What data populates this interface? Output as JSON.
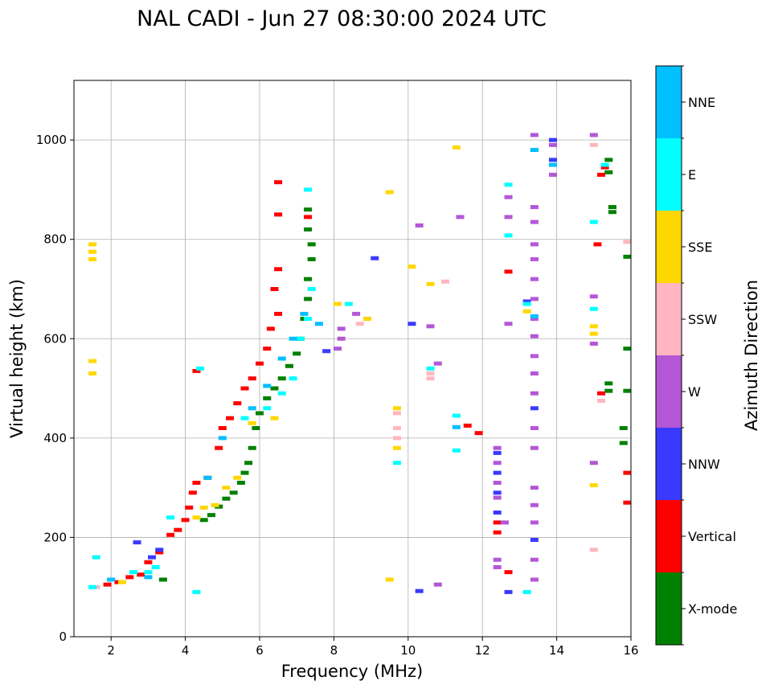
{
  "chart_data": {
    "type": "scatter",
    "title": "NAL CADI - Jun 27 08:30:00 2024 UTC",
    "xlabel": "Frequency (MHz)",
    "ylabel": "Virtual height (km)",
    "xlim": [
      1,
      16
    ],
    "ylim": [
      0,
      1120
    ],
    "xticks": [
      2,
      4,
      6,
      8,
      10,
      12,
      14,
      16
    ],
    "yticks": [
      0,
      200,
      400,
      600,
      800,
      1000
    ],
    "grid": true,
    "colorbar": {
      "label": "Azimuth Direction",
      "categories": [
        {
          "name": "X-mode",
          "color": "#008000"
        },
        {
          "name": "Vertical",
          "color": "#ff0000"
        },
        {
          "name": "NNW",
          "color": "#3a3aff"
        },
        {
          "name": "W",
          "color": "#b457d6"
        },
        {
          "name": "SSW",
          "color": "#ffb6c1"
        },
        {
          "name": "SSE",
          "color": "#ffd700"
        },
        {
          "name": "E",
          "color": "#00ffff"
        },
        {
          "name": "NNE",
          "color": "#00bfff"
        }
      ]
    },
    "series": [
      {
        "name": "X-mode",
        "points": [
          [
            3.4,
            115
          ],
          [
            4.5,
            235
          ],
          [
            4.7,
            245
          ],
          [
            4.9,
            262
          ],
          [
            5.1,
            278
          ],
          [
            5.3,
            290
          ],
          [
            5.5,
            310
          ],
          [
            5.6,
            330
          ],
          [
            5.7,
            350
          ],
          [
            5.8,
            380
          ],
          [
            5.9,
            420
          ],
          [
            6.0,
            450
          ],
          [
            6.2,
            480
          ],
          [
            6.4,
            500
          ],
          [
            6.6,
            520
          ],
          [
            6.8,
            545
          ],
          [
            7.0,
            570
          ],
          [
            7.1,
            600
          ],
          [
            7.2,
            640
          ],
          [
            7.3,
            680
          ],
          [
            7.3,
            720
          ],
          [
            7.4,
            760
          ],
          [
            7.4,
            790
          ],
          [
            7.3,
            820
          ],
          [
            7.3,
            860
          ],
          [
            15.4,
            960
          ],
          [
            15.4,
            935
          ],
          [
            15.5,
            865
          ],
          [
            15.5,
            855
          ],
          [
            15.4,
            510
          ],
          [
            15.4,
            495
          ],
          [
            15.9,
            765
          ],
          [
            15.9,
            580
          ],
          [
            15.9,
            495
          ],
          [
            15.8,
            420
          ],
          [
            15.8,
            390
          ]
        ]
      },
      {
        "name": "Vertical",
        "points": [
          [
            1.9,
            105
          ],
          [
            2.2,
            110
          ],
          [
            2.5,
            120
          ],
          [
            2.8,
            125
          ],
          [
            3.0,
            150
          ],
          [
            3.3,
            170
          ],
          [
            3.6,
            205
          ],
          [
            3.8,
            215
          ],
          [
            4.0,
            235
          ],
          [
            4.1,
            260
          ],
          [
            4.2,
            290
          ],
          [
            4.3,
            310
          ],
          [
            4.6,
            320
          ],
          [
            4.9,
            380
          ],
          [
            5.0,
            420
          ],
          [
            5.2,
            440
          ],
          [
            5.4,
            470
          ],
          [
            5.6,
            500
          ],
          [
            5.8,
            520
          ],
          [
            6.0,
            550
          ],
          [
            6.2,
            580
          ],
          [
            6.3,
            620
          ],
          [
            6.5,
            650
          ],
          [
            6.4,
            700
          ],
          [
            6.5,
            740
          ],
          [
            6.5,
            850
          ],
          [
            6.5,
            915
          ],
          [
            4.3,
            535
          ],
          [
            7.3,
            845
          ],
          [
            11.6,
            425
          ],
          [
            11.9,
            410
          ],
          [
            12.4,
            230
          ],
          [
            12.4,
            210
          ],
          [
            12.7,
            735
          ],
          [
            12.7,
            130
          ],
          [
            15.2,
            490
          ],
          [
            15.2,
            930
          ],
          [
            15.3,
            945
          ],
          [
            15.1,
            790
          ],
          [
            15.9,
            330
          ],
          [
            15.9,
            270
          ]
        ]
      },
      {
        "name": "NNW",
        "points": [
          [
            2.7,
            190
          ],
          [
            3.3,
            175
          ],
          [
            3.1,
            160
          ],
          [
            12.4,
            370
          ],
          [
            12.4,
            330
          ],
          [
            12.4,
            290
          ],
          [
            12.4,
            250
          ],
          [
            12.7,
            90
          ],
          [
            13.2,
            675
          ],
          [
            13.4,
            195
          ],
          [
            13.4,
            460
          ],
          [
            13.4,
            980
          ],
          [
            13.9,
            960
          ],
          [
            13.9,
            1000
          ],
          [
            10.1,
            630
          ],
          [
            10.3,
            92
          ],
          [
            9.1,
            762
          ],
          [
            7.8,
            575
          ]
        ]
      },
      {
        "name": "W",
        "points": [
          [
            8.1,
            580
          ],
          [
            8.2,
            600
          ],
          [
            8.2,
            620
          ],
          [
            8.6,
            650
          ],
          [
            8.9,
            640
          ],
          [
            10.6,
            625
          ],
          [
            10.8,
            550
          ],
          [
            10.8,
            105
          ],
          [
            12.4,
            380
          ],
          [
            12.4,
            350
          ],
          [
            12.4,
            310
          ],
          [
            12.4,
            280
          ],
          [
            12.4,
            155
          ],
          [
            12.4,
            140
          ],
          [
            12.7,
            885
          ],
          [
            12.7,
            845
          ],
          [
            12.7,
            630
          ],
          [
            12.6,
            230
          ],
          [
            13.4,
            1010
          ],
          [
            13.4,
            865
          ],
          [
            13.4,
            835
          ],
          [
            13.4,
            790
          ],
          [
            13.4,
            760
          ],
          [
            13.4,
            720
          ],
          [
            13.4,
            680
          ],
          [
            13.4,
            640
          ],
          [
            13.4,
            605
          ],
          [
            13.4,
            565
          ],
          [
            13.4,
            530
          ],
          [
            13.4,
            490
          ],
          [
            13.4,
            420
          ],
          [
            13.4,
            380
          ],
          [
            13.4,
            300
          ],
          [
            13.4,
            265
          ],
          [
            13.4,
            230
          ],
          [
            13.4,
            155
          ],
          [
            13.4,
            115
          ],
          [
            13.9,
            990
          ],
          [
            13.9,
            930
          ],
          [
            15.0,
            1010
          ],
          [
            15.0,
            685
          ],
          [
            15.0,
            590
          ],
          [
            15.0,
            350
          ],
          [
            10.3,
            828
          ],
          [
            11.4,
            845
          ]
        ]
      },
      {
        "name": "SSW",
        "points": [
          [
            1.6,
            100
          ],
          [
            9.7,
            450
          ],
          [
            9.7,
            420
          ],
          [
            9.7,
            400
          ],
          [
            10.6,
            530
          ],
          [
            10.6,
            520
          ],
          [
            11.0,
            715
          ],
          [
            15.0,
            990
          ],
          [
            15.0,
            175
          ],
          [
            15.2,
            475
          ],
          [
            15.9,
            795
          ],
          [
            8.7,
            630
          ]
        ]
      },
      {
        "name": "SSE",
        "points": [
          [
            1.5,
            790
          ],
          [
            1.5,
            775
          ],
          [
            1.5,
            760
          ],
          [
            1.5,
            555
          ],
          [
            1.5,
            530
          ],
          [
            2.3,
            110
          ],
          [
            4.3,
            240
          ],
          [
            4.5,
            260
          ],
          [
            4.8,
            265
          ],
          [
            5.1,
            300
          ],
          [
            5.4,
            320
          ],
          [
            5.8,
            430
          ],
          [
            6.4,
            440
          ],
          [
            9.5,
            895
          ],
          [
            9.5,
            115
          ],
          [
            9.7,
            380
          ],
          [
            9.7,
            460
          ],
          [
            10.1,
            745
          ],
          [
            10.6,
            710
          ],
          [
            11.3,
            985
          ],
          [
            13.2,
            655
          ],
          [
            15.0,
            625
          ],
          [
            15.0,
            610
          ],
          [
            15.0,
            305
          ],
          [
            8.1,
            670
          ],
          [
            8.9,
            640
          ]
        ]
      },
      {
        "name": "E",
        "points": [
          [
            1.5,
            100
          ],
          [
            1.6,
            160
          ],
          [
            2.6,
            130
          ],
          [
            3.0,
            130
          ],
          [
            3.2,
            140
          ],
          [
            3.6,
            240
          ],
          [
            4.3,
            90
          ],
          [
            4.4,
            540
          ],
          [
            5.6,
            440
          ],
          [
            6.2,
            460
          ],
          [
            6.6,
            490
          ],
          [
            6.9,
            520
          ],
          [
            7.1,
            600
          ],
          [
            7.3,
            640
          ],
          [
            7.4,
            700
          ],
          [
            7.3,
            900
          ],
          [
            9.7,
            350
          ],
          [
            10.6,
            540
          ],
          [
            11.3,
            445
          ],
          [
            11.3,
            375
          ],
          [
            12.7,
            910
          ],
          [
            12.7,
            808
          ],
          [
            13.2,
            90
          ],
          [
            13.2,
            670
          ],
          [
            15.0,
            835
          ],
          [
            15.0,
            660
          ],
          [
            15.3,
            950
          ],
          [
            8.4,
            670
          ]
        ]
      },
      {
        "name": "NNE",
        "points": [
          [
            2.0,
            115
          ],
          [
            3.0,
            120
          ],
          [
            4.6,
            320
          ],
          [
            5.0,
            400
          ],
          [
            5.8,
            460
          ],
          [
            6.2,
            505
          ],
          [
            6.6,
            560
          ],
          [
            6.9,
            600
          ],
          [
            7.2,
            650
          ],
          [
            7.6,
            630
          ],
          [
            11.3,
            422
          ],
          [
            13.4,
            645
          ],
          [
            13.4,
            980
          ],
          [
            13.9,
            950
          ]
        ]
      }
    ]
  }
}
